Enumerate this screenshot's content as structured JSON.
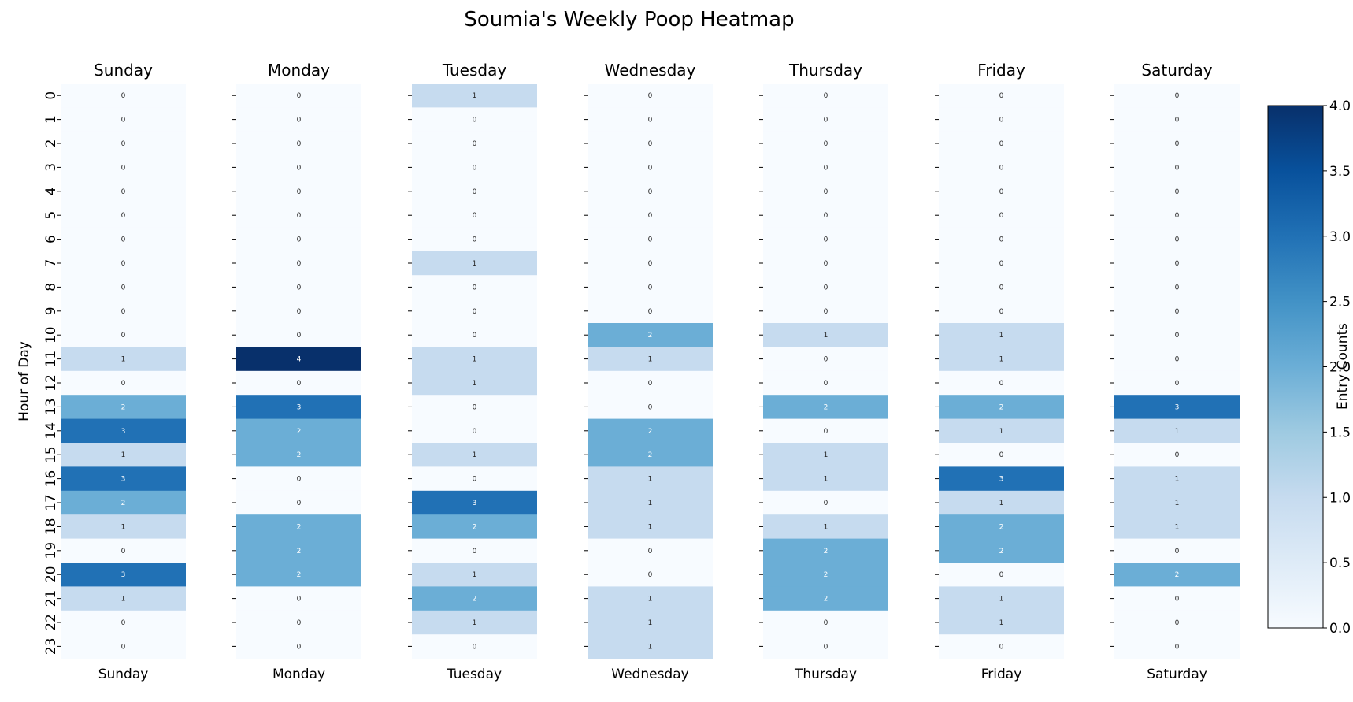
{
  "chart_data": {
    "type": "heatmap",
    "title": "Soumia's Weekly Poop Heatmap",
    "ylabel": "Hour of Day",
    "hours": [
      0,
      1,
      2,
      3,
      4,
      5,
      6,
      7,
      8,
      9,
      10,
      11,
      12,
      13,
      14,
      15,
      16,
      17,
      18,
      19,
      20,
      21,
      22,
      23
    ],
    "days": [
      "Sunday",
      "Monday",
      "Tuesday",
      "Wednesday",
      "Thursday",
      "Friday",
      "Saturday"
    ],
    "series": [
      {
        "name": "Sunday",
        "values": [
          0,
          0,
          0,
          0,
          0,
          0,
          0,
          0,
          0,
          0,
          0,
          1,
          0,
          2,
          3,
          1,
          3,
          2,
          1,
          0,
          3,
          1,
          0,
          0
        ]
      },
      {
        "name": "Monday",
        "values": [
          0,
          0,
          0,
          0,
          0,
          0,
          0,
          0,
          0,
          0,
          0,
          4,
          0,
          3,
          2,
          2,
          0,
          0,
          2,
          2,
          2,
          0,
          0,
          0
        ]
      },
      {
        "name": "Tuesday",
        "values": [
          1,
          0,
          0,
          0,
          0,
          0,
          0,
          1,
          0,
          0,
          0,
          1,
          1,
          0,
          0,
          1,
          0,
          3,
          2,
          0,
          1,
          2,
          1,
          0
        ]
      },
      {
        "name": "Wednesday",
        "values": [
          0,
          0,
          0,
          0,
          0,
          0,
          0,
          0,
          0,
          0,
          2,
          1,
          0,
          0,
          2,
          2,
          1,
          1,
          1,
          0,
          0,
          1,
          1,
          1
        ]
      },
      {
        "name": "Thursday",
        "values": [
          0,
          0,
          0,
          0,
          0,
          0,
          0,
          0,
          0,
          0,
          1,
          0,
          0,
          2,
          0,
          1,
          1,
          0,
          1,
          2,
          2,
          2,
          0,
          0
        ]
      },
      {
        "name": "Friday",
        "values": [
          0,
          0,
          0,
          0,
          0,
          0,
          0,
          0,
          0,
          0,
          1,
          1,
          0,
          2,
          1,
          0,
          3,
          1,
          2,
          2,
          0,
          1,
          1,
          0
        ]
      },
      {
        "name": "Saturday",
        "values": [
          0,
          0,
          0,
          0,
          0,
          0,
          0,
          0,
          0,
          0,
          0,
          0,
          0,
          3,
          1,
          0,
          1,
          1,
          1,
          0,
          2,
          0,
          0,
          0
        ]
      }
    ],
    "colorbar": {
      "label": "Entry Counts",
      "range": [
        0,
        4
      ],
      "ticks": [
        "0.0",
        "0.5",
        "1.0",
        "1.5",
        "2.0",
        "2.5",
        "3.0",
        "3.5",
        "4.0"
      ],
      "colormap": "Blues"
    },
    "colors": {
      "0": "#f7fbff",
      "1": "#c6dbef",
      "2": "#6baed6",
      "3": "#2171b5",
      "4": "#08306b"
    }
  }
}
